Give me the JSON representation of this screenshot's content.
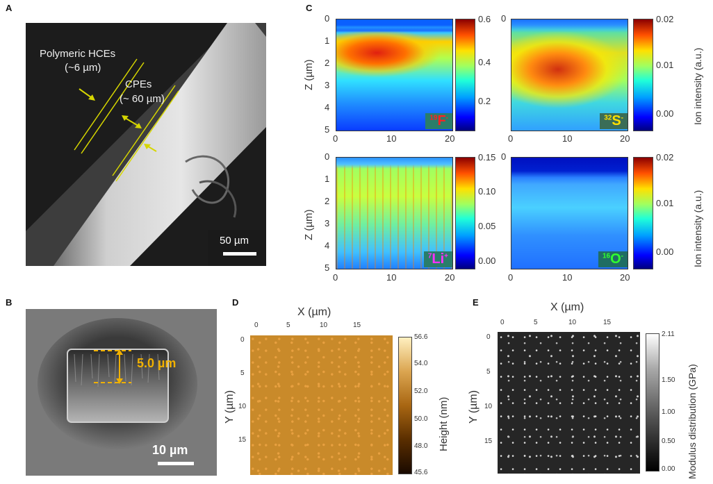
{
  "panels": {
    "A": {
      "label": "A",
      "annotations": [
        "Polymeric HCEs",
        "(~6 µm)",
        "CPEs",
        "(~ 60 µm)"
      ],
      "scale_bar": "50 µm"
    },
    "B": {
      "label": "B",
      "measure": "5.0 µm",
      "scale_bar": "10 µm"
    },
    "C": {
      "label": "C",
      "ylabel": "Z (µm)",
      "colorbar_label": "Ion intensity (a.u.)",
      "y_ticks": [
        "0",
        "1",
        "2",
        "3",
        "4",
        "5"
      ],
      "x_ticks": [
        "0",
        "10",
        "20"
      ],
      "maps": [
        {
          "mass": "19",
          "symbol": "F",
          "charge": "-",
          "cbar_ticks": [
            "0.6",
            "0.4",
            "0.2"
          ],
          "text_color": "#ff2020",
          "box_color": "#2a7d6a"
        },
        {
          "mass": "32",
          "symbol": "S",
          "charge": "-",
          "cbar_ticks": [
            "0.02",
            "0.01",
            "0.00"
          ],
          "text_color": "#ffe000",
          "box_color": "#3a6d57"
        },
        {
          "mass": "7",
          "symbol": "Li",
          "charge": "+",
          "cbar_ticks": [
            "0.15",
            "0.10",
            "0.05",
            "0.00"
          ],
          "text_color": "#ff30ff",
          "box_color": "#2a7d6a"
        },
        {
          "mass": "16",
          "symbol": "O",
          "charge": "-",
          "cbar_ticks": [
            "0.02",
            "0.01",
            "0.00"
          ],
          "text_color": "#30ff30",
          "box_color": "#1f6d63"
        }
      ]
    },
    "D": {
      "label": "D",
      "xlabel": "X (µm)",
      "ylabel": "Y (µm)",
      "x_ticks": [
        "0",
        "5",
        "10",
        "15"
      ],
      "y_ticks": [
        "0",
        "5",
        "10",
        "15"
      ],
      "colorbar_label": "Height (nm)",
      "cbar_ticks": [
        "56.6",
        "54.0",
        "52.0",
        "50.0",
        "48.0",
        "45.6"
      ]
    },
    "E": {
      "label": "E",
      "xlabel": "X (µm)",
      "ylabel": "Y (µm)",
      "x_ticks": [
        "0",
        "5",
        "10",
        "15"
      ],
      "y_ticks": [
        "0",
        "5",
        "10",
        "15"
      ],
      "colorbar_label": "Modulus distribution (GPa)",
      "cbar_ticks": [
        "2.11",
        "1.50",
        "1.00",
        "0.50",
        "0.00"
      ]
    }
  }
}
